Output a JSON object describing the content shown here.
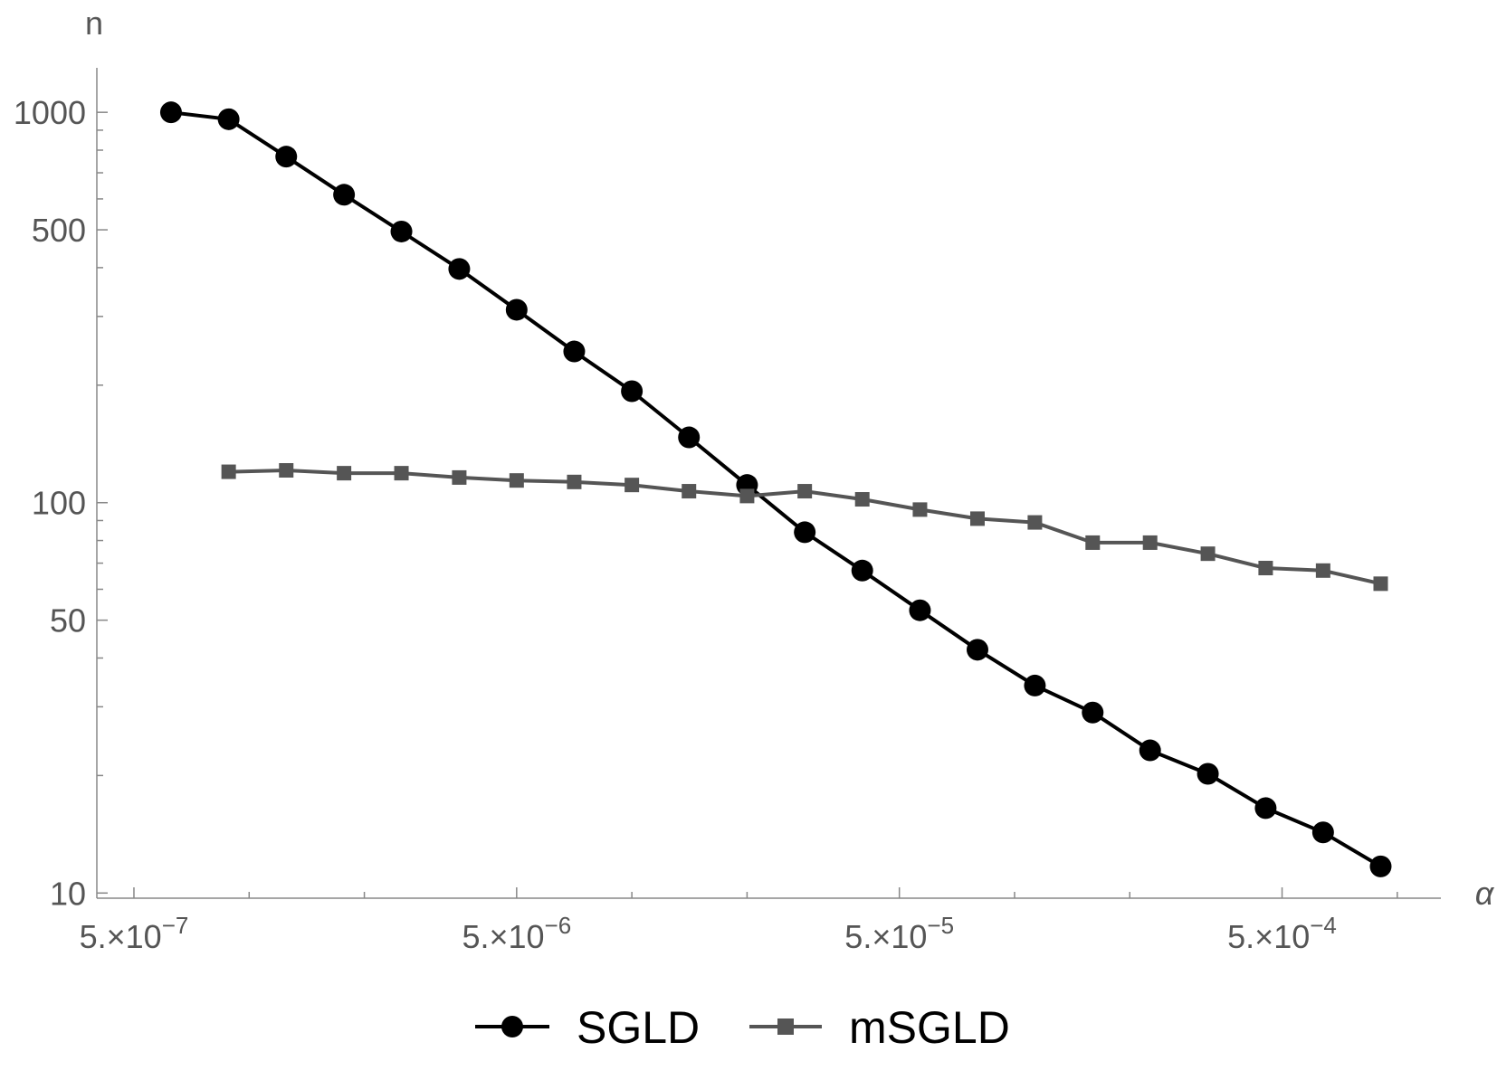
{
  "chart_data": {
    "type": "line",
    "xlabel": "α",
    "ylabel": "n",
    "x_scale": "log",
    "y_scale": "log",
    "xlim": [
      4e-07,
      0.0013
    ],
    "ylim": [
      9.7,
      1300
    ],
    "grid": false,
    "legend": "bottom",
    "x_ticks": [
      {
        "value": 5e-07,
        "mantissa": "5.",
        "exponent": "−7"
      },
      {
        "value": 5e-06,
        "mantissa": "5.",
        "exponent": "−6"
      },
      {
        "value": 5e-05,
        "mantissa": "5.",
        "exponent": "−5"
      },
      {
        "value": 0.0005,
        "mantissa": "5.",
        "exponent": "−4"
      }
    ],
    "y_ticks": [
      {
        "value": 10,
        "label": "10"
      },
      {
        "value": 50,
        "label": "50"
      },
      {
        "value": 100,
        "label": "100"
      },
      {
        "value": 500,
        "label": "500"
      },
      {
        "value": 1000,
        "label": "1000"
      }
    ],
    "series": [
      {
        "name": "SGLD",
        "color": "#000000",
        "marker": "circle",
        "x": [
          6.25e-07,
          8.84e-07,
          1.25e-06,
          1.77e-06,
          2.5e-06,
          3.54e-06,
          5e-06,
          7.07e-06,
          1e-05,
          1.41e-05,
          2e-05,
          2.83e-05,
          4e-05,
          5.66e-05,
          8e-05,
          0.000113,
          0.00016,
          0.000226,
          0.00032,
          0.000453,
          0.00064,
          0.000905
        ],
        "values": [
          1000,
          960,
          770,
          615,
          495,
          397,
          312,
          244,
          193,
          147,
          111,
          84,
          67,
          53,
          42,
          34,
          29,
          23.2,
          20.2,
          16.5,
          14.3,
          11.7
        ]
      },
      {
        "name": "mSGLD",
        "color": "#555555",
        "marker": "square",
        "x": [
          8.84e-07,
          1.25e-06,
          1.77e-06,
          2.5e-06,
          3.54e-06,
          5e-06,
          7.07e-06,
          1e-05,
          1.41e-05,
          2e-05,
          2.83e-05,
          4e-05,
          5.66e-05,
          8e-05,
          0.000113,
          0.00016,
          0.000226,
          0.00032,
          0.000453,
          0.00064,
          0.000905
        ],
        "values": [
          120,
          121,
          119,
          119,
          116,
          114,
          113,
          111,
          107,
          104,
          107,
          102,
          96,
          91,
          89,
          79,
          79,
          74,
          68,
          67,
          62
        ]
      }
    ]
  }
}
